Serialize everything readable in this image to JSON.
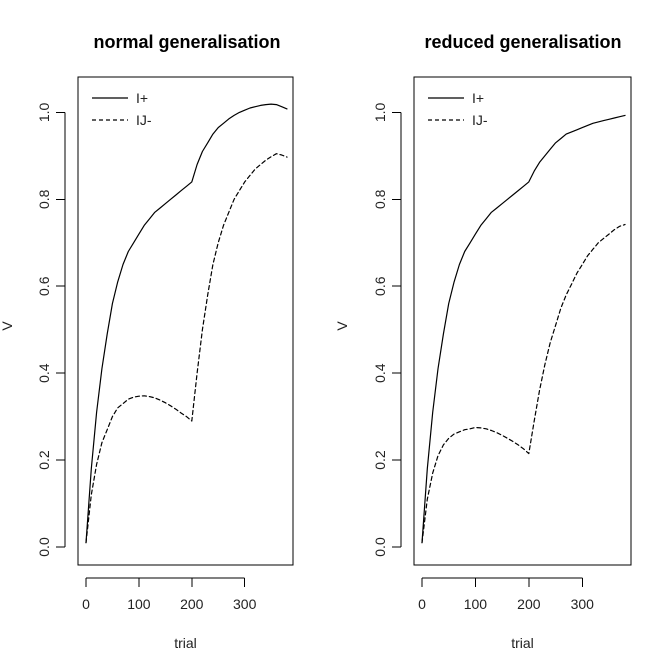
{
  "chart_data": [
    {
      "type": "line",
      "title": "normal generalisation",
      "xlabel": "trial",
      "ylabel": "V",
      "xlim": [
        0,
        380
      ],
      "ylim": [
        0,
        1.04
      ],
      "xticks": [
        "0",
        "100",
        "200",
        "300"
      ],
      "yticks": [
        "0.0",
        "0.2",
        "0.4",
        "0.6",
        "0.8",
        "1.0"
      ],
      "legend_position": "top-left",
      "series": [
        {
          "name": "I+",
          "line_style": "solid",
          "color": "#000000",
          "x": [
            0,
            10,
            20,
            30,
            40,
            50,
            60,
            70,
            80,
            90,
            100,
            110,
            120,
            130,
            140,
            150,
            160,
            170,
            180,
            190,
            200,
            210,
            220,
            230,
            240,
            250,
            260,
            270,
            280,
            290,
            300,
            310,
            320,
            330,
            340,
            350,
            360,
            370,
            380
          ],
          "values": [
            0.01,
            0.18,
            0.31,
            0.41,
            0.49,
            0.56,
            0.61,
            0.65,
            0.68,
            0.7,
            0.72,
            0.74,
            0.755,
            0.77,
            0.78,
            0.79,
            0.8,
            0.81,
            0.82,
            0.83,
            0.84,
            0.88,
            0.91,
            0.93,
            0.95,
            0.965,
            0.975,
            0.985,
            0.993,
            1.0,
            1.005,
            1.01,
            1.013,
            1.016,
            1.018,
            1.019,
            1.018,
            1.013,
            1.008
          ]
        },
        {
          "name": "IJ-",
          "line_style": "dashed",
          "color": "#000000",
          "x": [
            0,
            10,
            20,
            30,
            40,
            50,
            60,
            70,
            80,
            90,
            100,
            110,
            120,
            130,
            140,
            150,
            160,
            170,
            180,
            190,
            200,
            210,
            220,
            230,
            240,
            250,
            260,
            270,
            280,
            290,
            300,
            310,
            320,
            330,
            340,
            350,
            360,
            370,
            380
          ],
          "values": [
            0.01,
            0.12,
            0.19,
            0.24,
            0.27,
            0.3,
            0.32,
            0.33,
            0.34,
            0.345,
            0.347,
            0.348,
            0.346,
            0.343,
            0.338,
            0.332,
            0.325,
            0.317,
            0.308,
            0.3,
            0.29,
            0.4,
            0.5,
            0.58,
            0.65,
            0.7,
            0.74,
            0.77,
            0.8,
            0.82,
            0.84,
            0.855,
            0.87,
            0.88,
            0.89,
            0.898,
            0.905,
            0.902,
            0.897
          ]
        }
      ]
    },
    {
      "type": "line",
      "title": "reduced generalisation",
      "xlabel": "trial",
      "ylabel": "V",
      "xlim": [
        0,
        380
      ],
      "ylim": [
        0,
        1.04
      ],
      "xticks": [
        "0",
        "100",
        "200",
        "300"
      ],
      "yticks": [
        "0.0",
        "0.2",
        "0.4",
        "0.6",
        "0.8",
        "1.0"
      ],
      "legend_position": "top-left",
      "series": [
        {
          "name": "I+",
          "line_style": "solid",
          "color": "#000000",
          "x": [
            0,
            10,
            20,
            30,
            40,
            50,
            60,
            70,
            80,
            90,
            100,
            110,
            120,
            130,
            140,
            150,
            160,
            170,
            180,
            190,
            200,
            210,
            220,
            230,
            240,
            250,
            260,
            270,
            280,
            290,
            300,
            310,
            320,
            330,
            340,
            350,
            360,
            370,
            380
          ],
          "values": [
            0.01,
            0.18,
            0.31,
            0.41,
            0.49,
            0.56,
            0.61,
            0.65,
            0.68,
            0.7,
            0.72,
            0.74,
            0.755,
            0.77,
            0.78,
            0.79,
            0.8,
            0.81,
            0.82,
            0.83,
            0.84,
            0.865,
            0.885,
            0.9,
            0.915,
            0.93,
            0.94,
            0.95,
            0.955,
            0.96,
            0.965,
            0.97,
            0.975,
            0.978,
            0.981,
            0.984,
            0.987,
            0.99,
            0.993
          ]
        },
        {
          "name": "IJ-",
          "line_style": "dashed",
          "color": "#000000",
          "x": [
            0,
            10,
            20,
            30,
            40,
            50,
            60,
            70,
            80,
            90,
            100,
            110,
            120,
            130,
            140,
            150,
            160,
            170,
            180,
            190,
            200,
            210,
            220,
            230,
            240,
            250,
            260,
            270,
            280,
            290,
            300,
            310,
            320,
            330,
            340,
            350,
            360,
            370,
            380
          ],
          "values": [
            0.01,
            0.11,
            0.17,
            0.21,
            0.235,
            0.25,
            0.26,
            0.265,
            0.27,
            0.272,
            0.275,
            0.274,
            0.272,
            0.268,
            0.263,
            0.257,
            0.25,
            0.243,
            0.235,
            0.226,
            0.215,
            0.29,
            0.36,
            0.42,
            0.47,
            0.51,
            0.55,
            0.58,
            0.605,
            0.63,
            0.65,
            0.67,
            0.685,
            0.7,
            0.71,
            0.72,
            0.73,
            0.738,
            0.742
          ]
        }
      ]
    }
  ]
}
